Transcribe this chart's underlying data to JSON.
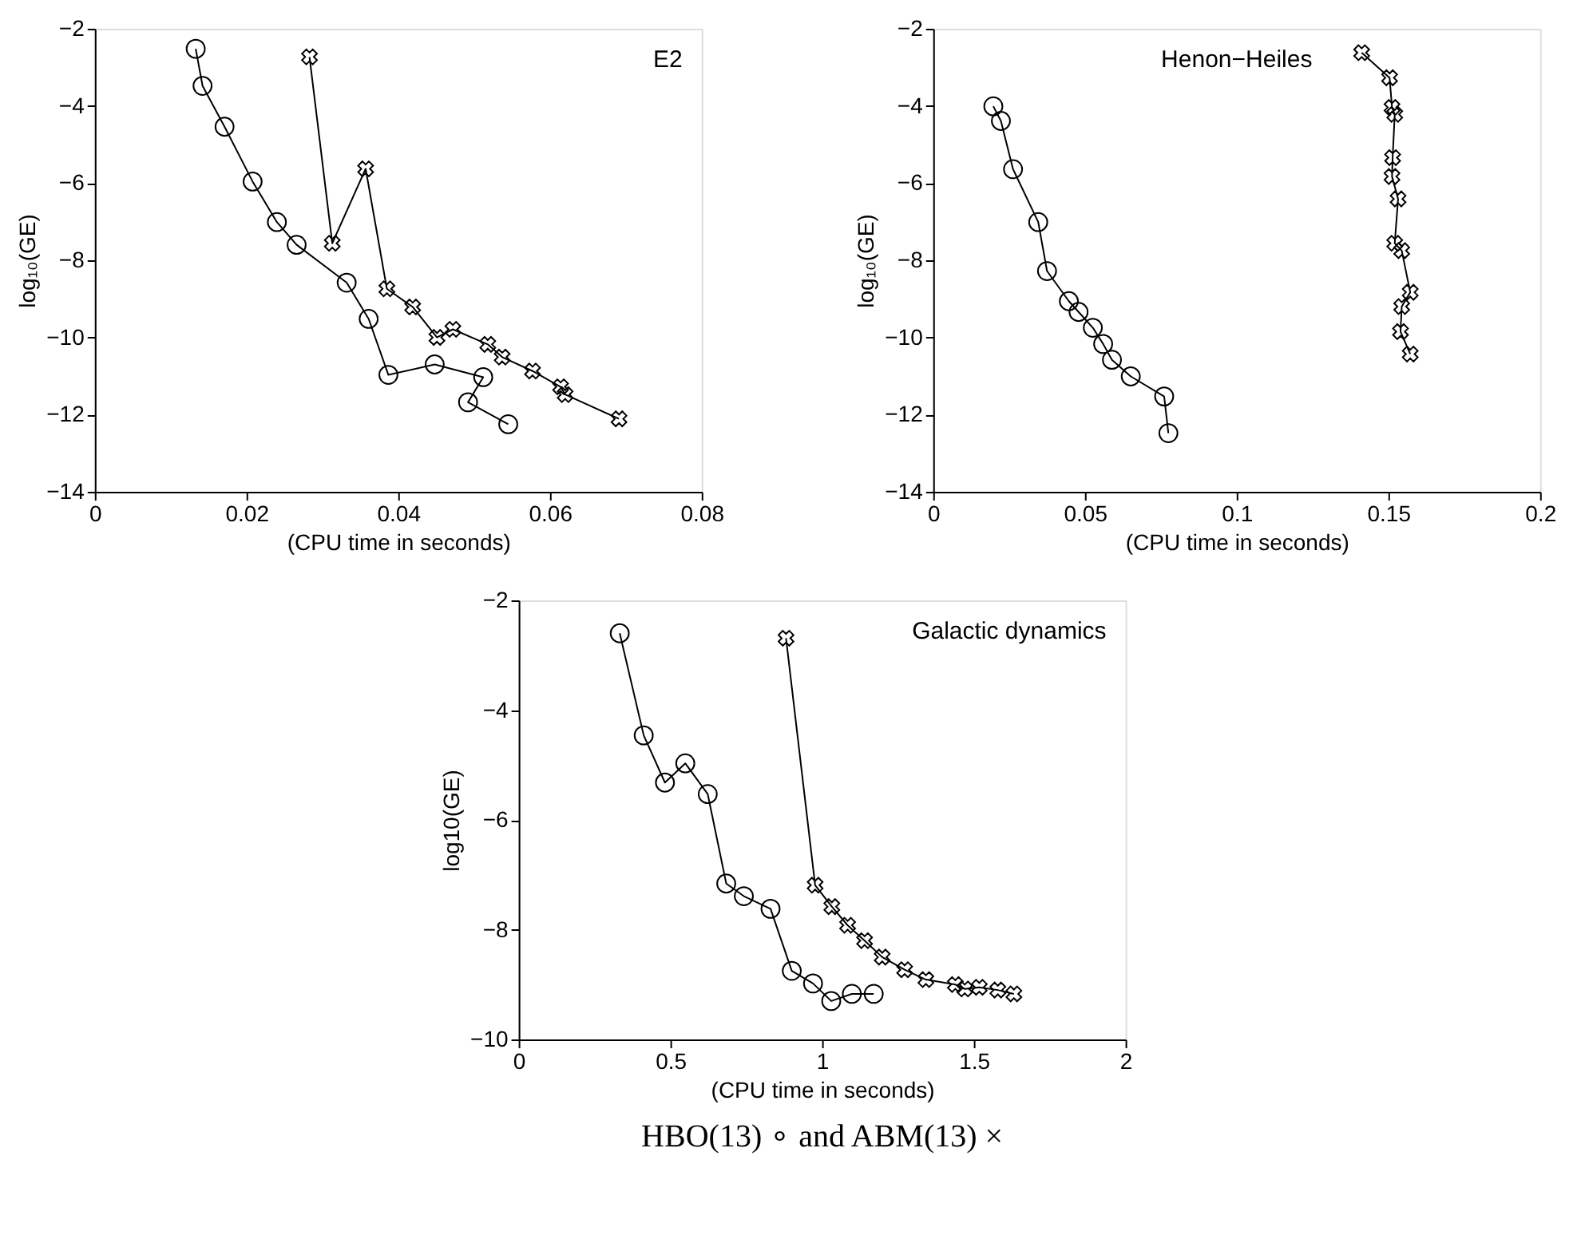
{
  "chart_data": [
    {
      "type": "line",
      "ylabel": "log₁₀(GE)",
      "xlabel": "(CPU time in seconds)",
      "annotations": [
        "E2"
      ],
      "xlim": [
        0,
        0.08
      ],
      "xticks": [
        0,
        0.02,
        0.04,
        0.06,
        0.08
      ],
      "ylim": [
        -14,
        -2
      ],
      "yticks": [
        -14,
        -12,
        -10,
        -8,
        -6,
        -4,
        -2
      ],
      "grid": false,
      "series": [
        {
          "color": "#000000",
          "marker": "circle",
          "x": [
            0.0133,
            0.0142,
            0.0171,
            0.0208,
            0.024,
            0.0266,
            0.0332,
            0.0361,
            0.0387,
            0.0448,
            0.0512,
            0.0492,
            0.0545
          ],
          "values": [
            -2.52,
            -3.48,
            -4.54,
            -5.96,
            -7.01,
            -7.6,
            -8.58,
            -9.52,
            -10.97,
            -10.7,
            -11.03,
            -11.68,
            -12.25
          ]
        },
        {
          "color": "#000000",
          "marker": "cross",
          "x": [
            0.0283,
            0.0313,
            0.0357,
            0.0385,
            0.0419,
            0.0451,
            0.0472,
            0.0518,
            0.0537,
            0.0577,
            0.0614,
            0.062,
            0.0691
          ],
          "values": [
            -2.73,
            -7.56,
            -5.63,
            -8.74,
            -9.21,
            -10.0,
            -9.79,
            -10.18,
            -10.51,
            -10.87,
            -11.28,
            -11.48,
            -12.11
          ]
        }
      ]
    },
    {
      "type": "line",
      "ylabel": "log₁₀(GE)",
      "xlabel": "(CPU time in seconds)",
      "annotations": [
        "Henon−Heiles"
      ],
      "xlim": [
        0,
        0.2
      ],
      "xticks": [
        0,
        0.05,
        0.1,
        0.15,
        0.2
      ],
      "ylim": [
        -14,
        -2
      ],
      "yticks": [
        -14,
        -12,
        -10,
        -8,
        -6,
        -4,
        -2
      ],
      "grid": false,
      "series": [
        {
          "color": "#000000",
          "marker": "circle",
          "x": [
            0.0198,
            0.0223,
            0.0263,
            0.0346,
            0.0375,
            0.0447,
            0.0479,
            0.0526,
            0.056,
            0.0589,
            0.0651,
            0.0761,
            0.0775
          ],
          "values": [
            -4.01,
            -4.39,
            -5.64,
            -7.01,
            -8.28,
            -9.06,
            -9.34,
            -9.75,
            -10.17,
            -10.58,
            -11.01,
            -11.53,
            -12.48
          ]
        },
        {
          "color": "#000000",
          "marker": "cross",
          "x": [
            0.1412,
            0.1504,
            0.1512,
            0.1521,
            0.1514,
            0.1512,
            0.1532,
            0.1521,
            0.1544,
            0.1572,
            0.1544,
            0.154,
            0.1572
          ],
          "values": [
            -2.62,
            -3.27,
            -4.04,
            -4.22,
            -5.34,
            -5.83,
            -6.41,
            -7.56,
            -7.75,
            -8.83,
            -9.2,
            -9.85,
            -10.43
          ]
        }
      ]
    },
    {
      "type": "line",
      "ylabel": "log10(GE)",
      "xlabel": "(CPU time in seconds)",
      "annotations": [
        "Galactic dynamics",
        "HBO(13) ∘ and ABM(13) ×"
      ],
      "xlim": [
        0,
        2
      ],
      "xticks": [
        0,
        0.5,
        1,
        1.5,
        2
      ],
      "ylim": [
        -10,
        -2
      ],
      "yticks": [
        -10,
        -8,
        -6,
        -4,
        -2
      ],
      "grid": false,
      "series": [
        {
          "color": "#000000",
          "marker": "circle",
          "x": [
            0.333,
            0.412,
            0.482,
            0.549,
            0.623,
            0.684,
            0.742,
            0.83,
            0.9,
            0.97,
            1.03,
            1.098,
            1.17
          ],
          "values": [
            -2.6,
            -4.46,
            -5.32,
            -4.97,
            -5.53,
            -7.16,
            -7.39,
            -7.62,
            -8.75,
            -8.98,
            -9.3,
            -9.17,
            -9.17
          ]
        },
        {
          "color": "#000000",
          "marker": "cross",
          "x": [
            0.881,
            0.977,
            1.032,
            1.084,
            1.14,
            1.198,
            1.272,
            1.342,
            1.439,
            1.47,
            1.518,
            1.579,
            1.632
          ],
          "values": [
            -2.69,
            -7.19,
            -7.58,
            -7.92,
            -8.2,
            -8.5,
            -8.73,
            -8.91,
            -9.0,
            -9.08,
            -9.05,
            -9.1,
            -9.17
          ]
        }
      ]
    }
  ]
}
